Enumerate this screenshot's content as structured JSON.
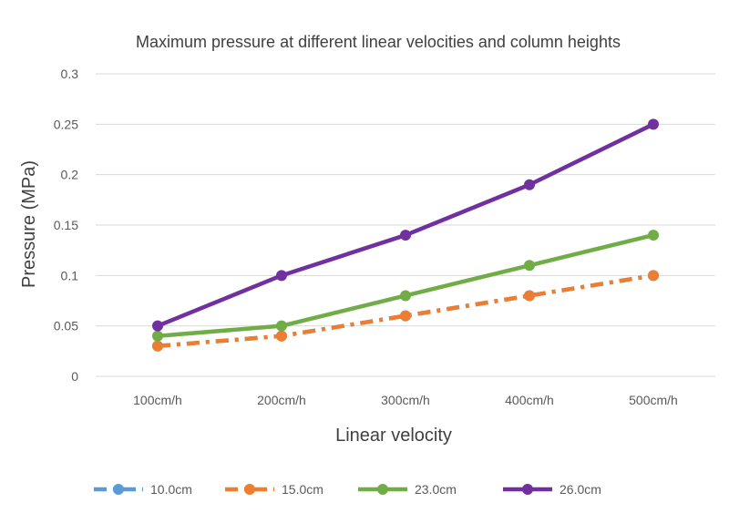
{
  "chart_data": {
    "type": "line",
    "title": "Maximum pressure at different linear velocities and column heights",
    "xlabel": "Linear velocity",
    "ylabel": "Pressure (MPa)",
    "categories": [
      "100cm/h",
      "200cm/h",
      "300cm/h",
      "400cm/h",
      "500cm/h"
    ],
    "ylim": [
      0,
      0.3
    ],
    "yticks": [
      "0",
      "0.05",
      "0.1",
      "0.15",
      "0.2",
      "0.25",
      "0.3"
    ],
    "grid": true,
    "legend_position": "bottom",
    "series": [
      {
        "name": "10.0cm",
        "color": "#5b9bd5",
        "dash": "dash-dot",
        "values": [
          0.03,
          0.04,
          0.06,
          0.08,
          0.1
        ]
      },
      {
        "name": "15.0cm",
        "color": "#ed7d31",
        "dash": "dash-dot",
        "values": [
          0.03,
          0.04,
          0.06,
          0.08,
          0.1
        ]
      },
      {
        "name": "23.0cm",
        "color": "#70ad47",
        "dash": "solid",
        "values": [
          0.04,
          0.05,
          0.08,
          0.11,
          0.14
        ]
      },
      {
        "name": "26.0cm",
        "color": "#7030a0",
        "dash": "solid",
        "values": [
          0.05,
          0.1,
          0.14,
          0.19,
          0.25
        ]
      }
    ]
  }
}
